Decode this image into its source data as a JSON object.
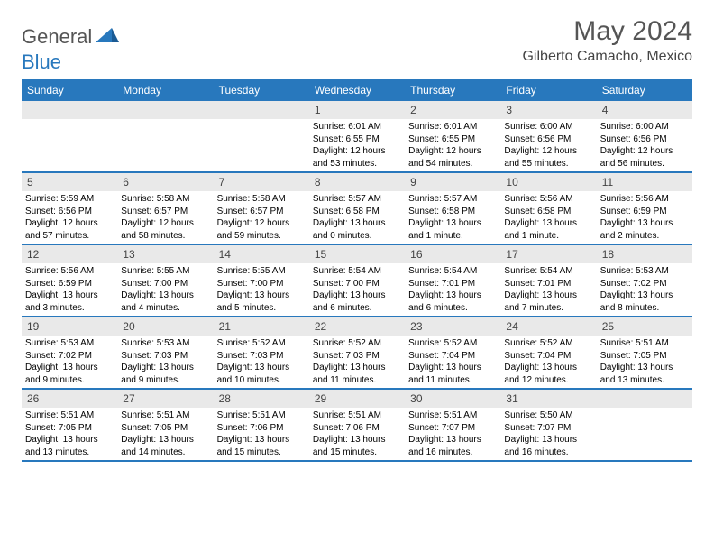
{
  "logo": {
    "part1": "General",
    "part2": "Blue"
  },
  "title": "May 2024",
  "location": "Gilberto Camacho, Mexico",
  "colors": {
    "header_bg": "#2878bd",
    "header_text": "#ffffff",
    "daynum_bg": "#e9e9e9",
    "text": "#000000",
    "title_color": "#555555"
  },
  "weekdays": [
    "Sunday",
    "Monday",
    "Tuesday",
    "Wednesday",
    "Thursday",
    "Friday",
    "Saturday"
  ],
  "weeks": [
    [
      null,
      null,
      null,
      {
        "n": "1",
        "sr": "6:01 AM",
        "ss": "6:55 PM",
        "dl": "12 hours and 53 minutes."
      },
      {
        "n": "2",
        "sr": "6:01 AM",
        "ss": "6:55 PM",
        "dl": "12 hours and 54 minutes."
      },
      {
        "n": "3",
        "sr": "6:00 AM",
        "ss": "6:56 PM",
        "dl": "12 hours and 55 minutes."
      },
      {
        "n": "4",
        "sr": "6:00 AM",
        "ss": "6:56 PM",
        "dl": "12 hours and 56 minutes."
      }
    ],
    [
      {
        "n": "5",
        "sr": "5:59 AM",
        "ss": "6:56 PM",
        "dl": "12 hours and 57 minutes."
      },
      {
        "n": "6",
        "sr": "5:58 AM",
        "ss": "6:57 PM",
        "dl": "12 hours and 58 minutes."
      },
      {
        "n": "7",
        "sr": "5:58 AM",
        "ss": "6:57 PM",
        "dl": "12 hours and 59 minutes."
      },
      {
        "n": "8",
        "sr": "5:57 AM",
        "ss": "6:58 PM",
        "dl": "13 hours and 0 minutes."
      },
      {
        "n": "9",
        "sr": "5:57 AM",
        "ss": "6:58 PM",
        "dl": "13 hours and 1 minute."
      },
      {
        "n": "10",
        "sr": "5:56 AM",
        "ss": "6:58 PM",
        "dl": "13 hours and 1 minute."
      },
      {
        "n": "11",
        "sr": "5:56 AM",
        "ss": "6:59 PM",
        "dl": "13 hours and 2 minutes."
      }
    ],
    [
      {
        "n": "12",
        "sr": "5:56 AM",
        "ss": "6:59 PM",
        "dl": "13 hours and 3 minutes."
      },
      {
        "n": "13",
        "sr": "5:55 AM",
        "ss": "7:00 PM",
        "dl": "13 hours and 4 minutes."
      },
      {
        "n": "14",
        "sr": "5:55 AM",
        "ss": "7:00 PM",
        "dl": "13 hours and 5 minutes."
      },
      {
        "n": "15",
        "sr": "5:54 AM",
        "ss": "7:00 PM",
        "dl": "13 hours and 6 minutes."
      },
      {
        "n": "16",
        "sr": "5:54 AM",
        "ss": "7:01 PM",
        "dl": "13 hours and 6 minutes."
      },
      {
        "n": "17",
        "sr": "5:54 AM",
        "ss": "7:01 PM",
        "dl": "13 hours and 7 minutes."
      },
      {
        "n": "18",
        "sr": "5:53 AM",
        "ss": "7:02 PM",
        "dl": "13 hours and 8 minutes."
      }
    ],
    [
      {
        "n": "19",
        "sr": "5:53 AM",
        "ss": "7:02 PM",
        "dl": "13 hours and 9 minutes."
      },
      {
        "n": "20",
        "sr": "5:53 AM",
        "ss": "7:03 PM",
        "dl": "13 hours and 9 minutes."
      },
      {
        "n": "21",
        "sr": "5:52 AM",
        "ss": "7:03 PM",
        "dl": "13 hours and 10 minutes."
      },
      {
        "n": "22",
        "sr": "5:52 AM",
        "ss": "7:03 PM",
        "dl": "13 hours and 11 minutes."
      },
      {
        "n": "23",
        "sr": "5:52 AM",
        "ss": "7:04 PM",
        "dl": "13 hours and 11 minutes."
      },
      {
        "n": "24",
        "sr": "5:52 AM",
        "ss": "7:04 PM",
        "dl": "13 hours and 12 minutes."
      },
      {
        "n": "25",
        "sr": "5:51 AM",
        "ss": "7:05 PM",
        "dl": "13 hours and 13 minutes."
      }
    ],
    [
      {
        "n": "26",
        "sr": "5:51 AM",
        "ss": "7:05 PM",
        "dl": "13 hours and 13 minutes."
      },
      {
        "n": "27",
        "sr": "5:51 AM",
        "ss": "7:05 PM",
        "dl": "13 hours and 14 minutes."
      },
      {
        "n": "28",
        "sr": "5:51 AM",
        "ss": "7:06 PM",
        "dl": "13 hours and 15 minutes."
      },
      {
        "n": "29",
        "sr": "5:51 AM",
        "ss": "7:06 PM",
        "dl": "13 hours and 15 minutes."
      },
      {
        "n": "30",
        "sr": "5:51 AM",
        "ss": "7:07 PM",
        "dl": "13 hours and 16 minutes."
      },
      {
        "n": "31",
        "sr": "5:50 AM",
        "ss": "7:07 PM",
        "dl": "13 hours and 16 minutes."
      },
      null
    ]
  ],
  "labels": {
    "sunrise": "Sunrise:",
    "sunset": "Sunset:",
    "daylight": "Daylight:"
  }
}
